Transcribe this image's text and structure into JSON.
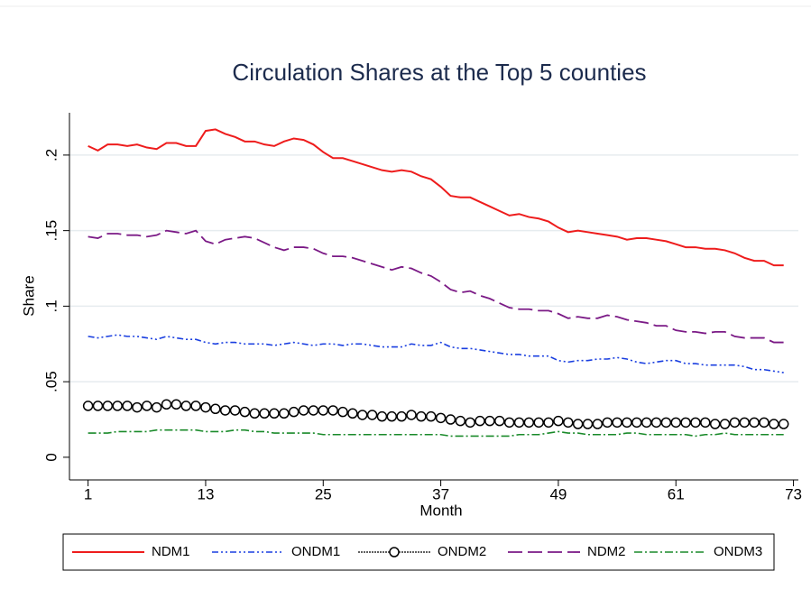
{
  "chart_data": {
    "type": "line",
    "title": "Circulation Shares at the Top 5 counties",
    "x_label": "Month",
    "y_label": "Share",
    "x": [
      1,
      2,
      3,
      4,
      5,
      6,
      7,
      8,
      9,
      10,
      11,
      12,
      13,
      14,
      15,
      16,
      17,
      18,
      19,
      20,
      21,
      22,
      23,
      24,
      25,
      26,
      27,
      28,
      29,
      30,
      31,
      32,
      33,
      34,
      35,
      36,
      37,
      38,
      39,
      40,
      41,
      42,
      43,
      44,
      45,
      46,
      47,
      48,
      49,
      50,
      51,
      52,
      53,
      54,
      55,
      56,
      57,
      58,
      59,
      60,
      61,
      62,
      63,
      64,
      65,
      66,
      67,
      68,
      69,
      70,
      71,
      72
    ],
    "xlim": [
      -0.9,
      73.5
    ],
    "xticks": [
      1,
      13,
      25,
      37,
      49,
      61,
      73
    ],
    "ylim": [
      -0.015,
      0.228
    ],
    "yticks": [
      0,
      {
        "value": 0.05,
        "label": ".05"
      },
      {
        "value": 0.1,
        "label": ".1"
      },
      {
        "value": 0.15,
        "label": ".15"
      },
      {
        "value": 0.2,
        "label": ".2"
      }
    ],
    "grid": true,
    "legend": "bottom",
    "series": [
      {
        "name": "NDM1",
        "color": "#ee1c1c",
        "values": [
          0.206,
          0.203,
          0.207,
          0.207,
          0.206,
          0.207,
          0.205,
          0.204,
          0.208,
          0.208,
          0.206,
          0.206,
          0.216,
          0.217,
          0.214,
          0.212,
          0.209,
          0.209,
          0.207,
          0.206,
          0.209,
          0.211,
          0.21,
          0.207,
          0.202,
          0.198,
          0.198,
          0.196,
          0.194,
          0.192,
          0.19,
          0.189,
          0.19,
          0.189,
          0.186,
          0.184,
          0.179,
          0.173,
          0.172,
          0.172,
          0.169,
          0.166,
          0.163,
          0.16,
          0.161,
          0.159,
          0.158,
          0.156,
          0.152,
          0.149,
          0.15,
          0.149,
          0.148,
          0.147,
          0.146,
          0.144,
          0.145,
          0.145,
          0.144,
          0.143,
          0.141,
          0.139,
          0.139,
          0.138,
          0.138,
          0.137,
          0.135,
          0.132,
          0.13,
          0.13,
          0.127,
          0.127
        ]
      },
      {
        "name": "ONDM1",
        "color": "#1a3fe0",
        "values": [
          0.08,
          0.079,
          0.08,
          0.081,
          0.08,
          0.08,
          0.079,
          0.078,
          0.08,
          0.079,
          0.078,
          0.078,
          0.076,
          0.075,
          0.076,
          0.076,
          0.075,
          0.075,
          0.075,
          0.074,
          0.075,
          0.076,
          0.075,
          0.074,
          0.075,
          0.075,
          0.074,
          0.075,
          0.075,
          0.074,
          0.073,
          0.073,
          0.073,
          0.075,
          0.074,
          0.074,
          0.076,
          0.073,
          0.072,
          0.072,
          0.071,
          0.07,
          0.069,
          0.068,
          0.068,
          0.067,
          0.067,
          0.067,
          0.064,
          0.063,
          0.064,
          0.064,
          0.065,
          0.065,
          0.066,
          0.065,
          0.063,
          0.062,
          0.063,
          0.064,
          0.064,
          0.062,
          0.062,
          0.061,
          0.061,
          0.061,
          0.061,
          0.06,
          0.058,
          0.058,
          0.057,
          0.056
        ]
      },
      {
        "name": "ONDM2",
        "color": "#000000",
        "values": [
          0.034,
          0.034,
          0.034,
          0.034,
          0.034,
          0.033,
          0.034,
          0.033,
          0.035,
          0.035,
          0.034,
          0.034,
          0.033,
          0.032,
          0.031,
          0.031,
          0.03,
          0.029,
          0.029,
          0.029,
          0.029,
          0.03,
          0.031,
          0.031,
          0.031,
          0.031,
          0.03,
          0.029,
          0.028,
          0.028,
          0.027,
          0.027,
          0.027,
          0.028,
          0.027,
          0.027,
          0.026,
          0.025,
          0.024,
          0.023,
          0.024,
          0.024,
          0.024,
          0.023,
          0.023,
          0.023,
          0.023,
          0.023,
          0.024,
          0.023,
          0.022,
          0.022,
          0.022,
          0.023,
          0.023,
          0.023,
          0.023,
          0.023,
          0.023,
          0.023,
          0.023,
          0.023,
          0.023,
          0.023,
          0.022,
          0.022,
          0.023,
          0.023,
          0.023,
          0.023,
          0.022,
          0.022
        ]
      },
      {
        "name": "NDM2",
        "color": "#7b1a86",
        "values": [
          0.146,
          0.145,
          0.148,
          0.148,
          0.147,
          0.147,
          0.146,
          0.147,
          0.15,
          0.149,
          0.148,
          0.15,
          0.143,
          0.141,
          0.144,
          0.145,
          0.146,
          0.145,
          0.142,
          0.139,
          0.137,
          0.139,
          0.139,
          0.138,
          0.135,
          0.133,
          0.133,
          0.132,
          0.13,
          0.128,
          0.126,
          0.124,
          0.126,
          0.125,
          0.122,
          0.12,
          0.116,
          0.111,
          0.109,
          0.11,
          0.107,
          0.105,
          0.102,
          0.099,
          0.098,
          0.098,
          0.097,
          0.097,
          0.095,
          0.092,
          0.093,
          0.092,
          0.092,
          0.094,
          0.093,
          0.091,
          0.09,
          0.089,
          0.087,
          0.087,
          0.084,
          0.083,
          0.083,
          0.082,
          0.083,
          0.083,
          0.08,
          0.079,
          0.079,
          0.079,
          0.076,
          0.076
        ]
      },
      {
        "name": "ONDM3",
        "color": "#1a8a2a",
        "values": [
          0.016,
          0.016,
          0.016,
          0.017,
          0.017,
          0.017,
          0.017,
          0.018,
          0.018,
          0.018,
          0.018,
          0.018,
          0.017,
          0.017,
          0.017,
          0.018,
          0.018,
          0.017,
          0.017,
          0.016,
          0.016,
          0.016,
          0.016,
          0.016,
          0.015,
          0.015,
          0.015,
          0.015,
          0.015,
          0.015,
          0.015,
          0.015,
          0.015,
          0.015,
          0.015,
          0.015,
          0.015,
          0.014,
          0.014,
          0.014,
          0.014,
          0.014,
          0.014,
          0.014,
          0.015,
          0.015,
          0.015,
          0.016,
          0.017,
          0.016,
          0.016,
          0.015,
          0.015,
          0.015,
          0.015,
          0.016,
          0.016,
          0.015,
          0.015,
          0.015,
          0.015,
          0.015,
          0.014,
          0.015,
          0.015,
          0.016,
          0.015,
          0.015,
          0.015,
          0.015,
          0.015,
          0.015
        ]
      }
    ]
  }
}
